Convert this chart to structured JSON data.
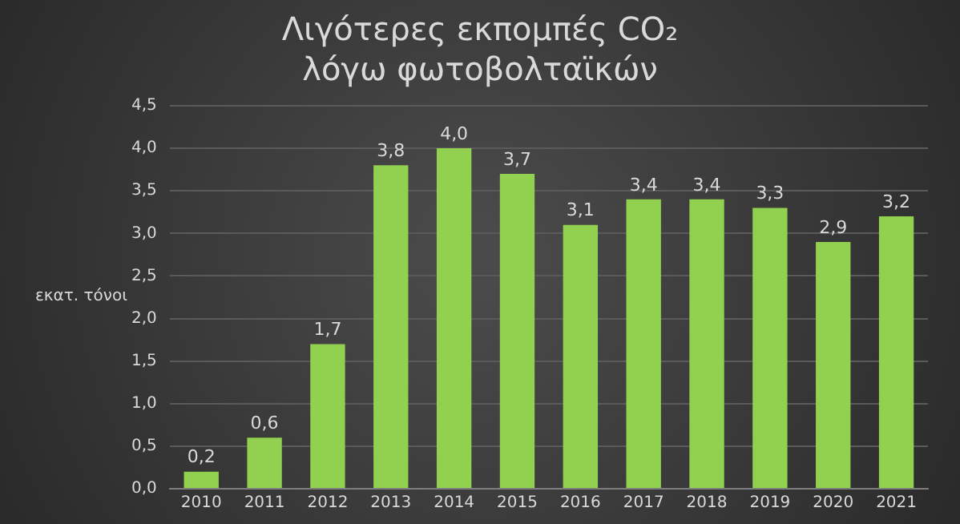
{
  "chart_data": {
    "type": "bar",
    "title": "Λιγότερες εκπομπές CO₂\nλόγω φωτοβολταϊκών",
    "ylabel": "εκατ. τόνοι",
    "categories": [
      "2010",
      "2011",
      "2012",
      "2013",
      "2014",
      "2015",
      "2016",
      "2017",
      "2018",
      "2019",
      "2020",
      "2021"
    ],
    "values": [
      0.2,
      0.6,
      1.7,
      3.8,
      4.0,
      3.7,
      3.1,
      3.4,
      3.4,
      3.3,
      2.9,
      3.2
    ],
    "value_labels": [
      "0,2",
      "0,6",
      "1,7",
      "3,8",
      "4,0",
      "3,7",
      "3,1",
      "3,4",
      "3,4",
      "3,3",
      "2,9",
      "3,2"
    ],
    "color": "#92d050",
    "ylim": [
      0,
      4.5
    ],
    "yticks": [
      {
        "value": 0,
        "label": "0,0"
      },
      {
        "value": 0.5,
        "label": "0,5"
      },
      {
        "value": 1,
        "label": "1,0"
      },
      {
        "value": 1.5,
        "label": "1,5"
      },
      {
        "value": 2,
        "label": "2,0"
      },
      {
        "value": 2.5,
        "label": "2,5"
      },
      {
        "value": 3,
        "label": "3,0"
      },
      {
        "value": 3.5,
        "label": "3,5"
      },
      {
        "value": 4,
        "label": "4,0"
      },
      {
        "value": 4.5,
        "label": "4,5"
      }
    ],
    "grid": "y",
    "legend": false
  }
}
